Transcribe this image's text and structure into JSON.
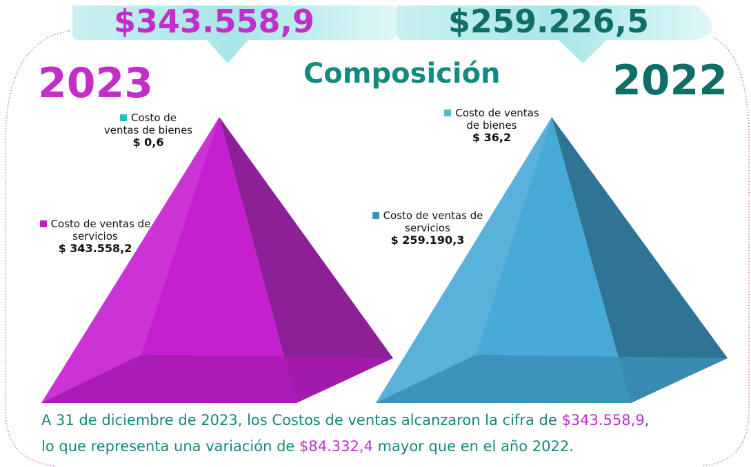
{
  "header": {
    "total_2023": "$343.558,9",
    "total_2022": "$259.226,5",
    "title": "Composición",
    "year_2023": "2023",
    "year_2022": "2022"
  },
  "pyramids": [
    {
      "items": [
        {
          "name": "Costo de ventas de bienes",
          "value": "$ 0,6",
          "color": "#20c4bd"
        },
        {
          "name": "Costo de ventas de servicios",
          "value": "$ 343.558,2",
          "color": "#c21fcc"
        }
      ]
    },
    {
      "items": [
        {
          "name": "Costo de ventas de bienes",
          "value": "$ 36,2",
          "color": "#5ab8c8"
        },
        {
          "name": "Costo de ventas de servicios",
          "value": "$ 259.190,3",
          "color": "#3d90b8"
        }
      ]
    }
  ],
  "summary": {
    "line1": [
      "A 31 de diciembre de 2023, los Costos de ventas alcanzaron la cifra de ",
      "$343.558,9",
      ","
    ],
    "line2": [
      "lo que representa una variación de ",
      "$84.332,4",
      " mayor que en el año 2022."
    ]
  }
}
